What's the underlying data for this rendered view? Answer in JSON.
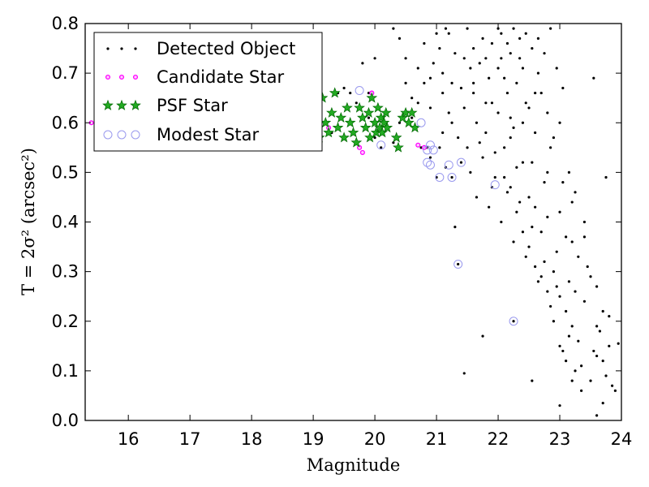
{
  "chart_data": {
    "type": "scatter",
    "xlabel": "Magnitude",
    "ylabel": "T = 2σ² (arcsec²)",
    "xlim": [
      15.3,
      24
    ],
    "ylim": [
      0.0,
      0.8
    ],
    "xticks": [
      16,
      17,
      18,
      19,
      20,
      21,
      22,
      23,
      24
    ],
    "yticks": [
      0.0,
      0.1,
      0.2,
      0.3,
      0.4,
      0.5,
      0.6,
      0.7,
      0.8
    ],
    "grid": false,
    "legend_position": "top-left",
    "colors": {
      "detected": "#000000",
      "candidate": "#ff00ff",
      "psf_fill": "#22aa22",
      "psf_edge": "#006600",
      "modest": "#9999ee"
    },
    "series": [
      {
        "name": "Detected Object",
        "marker": "dot",
        "points": [
          [
            15.4,
            0.6
          ],
          [
            18.8,
            0.59
          ],
          [
            19.0,
            0.6
          ],
          [
            19.3,
            0.58
          ],
          [
            19.4,
            0.66
          ],
          [
            19.6,
            0.66
          ],
          [
            19.8,
            0.54
          ],
          [
            19.9,
            0.61
          ],
          [
            20.0,
            0.57
          ],
          [
            20.1,
            0.55
          ],
          [
            20.3,
            0.56
          ],
          [
            20.4,
            0.6
          ],
          [
            20.6,
            0.61
          ],
          [
            20.75,
            0.55
          ],
          [
            20.85,
            0.55
          ],
          [
            20.9,
            0.53
          ],
          [
            21.0,
            0.49
          ],
          [
            21.05,
            0.55
          ],
          [
            21.15,
            0.51
          ],
          [
            21.25,
            0.49
          ],
          [
            21.3,
            0.39
          ],
          [
            21.35,
            0.315
          ],
          [
            21.4,
            0.52
          ],
          [
            21.45,
            0.095
          ],
          [
            21.75,
            0.17
          ],
          [
            21.9,
            0.47
          ],
          [
            22.25,
            0.2
          ],
          [
            22.55,
            0.08
          ],
          [
            23.0,
            0.03
          ],
          [
            23.6,
            0.01
          ],
          [
            23.7,
            0.035
          ],
          [
            23.95,
            0.155
          ],
          [
            23.75,
            0.49
          ],
          [
            23.55,
            0.69
          ],
          [
            19.8,
            0.72
          ],
          [
            19.5,
            0.67
          ],
          [
            20.0,
            0.73
          ],
          [
            20.6,
            0.65
          ],
          [
            20.5,
            0.73
          ],
          [
            20.4,
            0.77
          ],
          [
            20.8,
            0.76
          ],
          [
            20.3,
            0.79
          ],
          [
            20.9,
            0.69
          ],
          [
            21.0,
            0.78
          ],
          [
            21.1,
            0.7
          ],
          [
            21.2,
            0.62
          ],
          [
            21.3,
            0.74
          ],
          [
            21.5,
            0.79
          ],
          [
            21.6,
            0.66
          ],
          [
            21.7,
            0.72
          ],
          [
            21.8,
            0.58
          ],
          [
            21.9,
            0.64
          ],
          [
            22.0,
            0.79
          ],
          [
            22.1,
            0.55
          ],
          [
            22.2,
            0.61
          ],
          [
            22.3,
            0.68
          ],
          [
            22.4,
            0.52
          ],
          [
            22.5,
            0.45
          ],
          [
            22.6,
            0.58
          ],
          [
            22.7,
            0.38
          ],
          [
            22.8,
            0.62
          ],
          [
            22.9,
            0.3
          ],
          [
            23.0,
            0.42
          ],
          [
            23.1,
            0.22
          ],
          [
            23.2,
            0.36
          ],
          [
            23.3,
            0.16
          ],
          [
            23.4,
            0.4
          ],
          [
            23.5,
            0.08
          ],
          [
            23.6,
            0.19
          ],
          [
            23.7,
            0.12
          ],
          [
            23.8,
            0.21
          ],
          [
            23.9,
            0.06
          ],
          [
            21.05,
            0.75
          ],
          [
            21.15,
            0.79
          ],
          [
            21.25,
            0.68
          ],
          [
            21.35,
            0.57
          ],
          [
            21.45,
            0.63
          ],
          [
            21.55,
            0.71
          ],
          [
            21.65,
            0.6
          ],
          [
            21.75,
            0.77
          ],
          [
            21.85,
            0.69
          ],
          [
            21.95,
            0.54
          ],
          [
            22.05,
            0.73
          ],
          [
            22.15,
            0.66
          ],
          [
            22.25,
            0.59
          ],
          [
            22.35,
            0.77
          ],
          [
            22.45,
            0.64
          ],
          [
            22.55,
            0.52
          ],
          [
            22.65,
            0.7
          ],
          [
            22.75,
            0.48
          ],
          [
            22.85,
            0.55
          ],
          [
            22.95,
            0.34
          ],
          [
            23.05,
            0.48
          ],
          [
            23.15,
            0.28
          ],
          [
            23.25,
            0.26
          ],
          [
            23.35,
            0.11
          ],
          [
            23.45,
            0.31
          ],
          [
            23.55,
            0.14
          ],
          [
            23.65,
            0.18
          ],
          [
            23.75,
            0.09
          ],
          [
            23.85,
            0.07
          ],
          [
            20.7,
            0.71
          ],
          [
            20.8,
            0.68
          ],
          [
            20.9,
            0.63
          ],
          [
            21.1,
            0.66
          ],
          [
            21.2,
            0.78
          ],
          [
            21.4,
            0.67
          ],
          [
            21.5,
            0.55
          ],
          [
            21.6,
            0.75
          ],
          [
            21.7,
            0.56
          ],
          [
            21.8,
            0.73
          ],
          [
            21.9,
            0.76
          ],
          [
            22.0,
            0.62
          ],
          [
            22.1,
            0.69
          ],
          [
            22.2,
            0.74
          ],
          [
            22.3,
            0.51
          ],
          [
            22.4,
            0.71
          ],
          [
            22.5,
            0.63
          ],
          [
            22.6,
            0.43
          ],
          [
            22.7,
            0.66
          ],
          [
            22.8,
            0.41
          ],
          [
            22.9,
            0.57
          ],
          [
            23.0,
            0.25
          ],
          [
            23.1,
            0.37
          ],
          [
            23.2,
            0.19
          ],
          [
            23.3,
            0.33
          ],
          [
            23.4,
            0.24
          ],
          [
            23.5,
            0.29
          ],
          [
            23.6,
            0.13
          ],
          [
            23.7,
            0.22
          ],
          [
            21.55,
            0.5
          ],
          [
            21.65,
            0.45
          ],
          [
            21.75,
            0.53
          ],
          [
            21.85,
            0.43
          ],
          [
            21.95,
            0.49
          ],
          [
            22.05,
            0.4
          ],
          [
            22.15,
            0.46
          ],
          [
            22.25,
            0.36
          ],
          [
            22.35,
            0.44
          ],
          [
            22.45,
            0.33
          ],
          [
            22.55,
            0.39
          ],
          [
            22.65,
            0.28
          ],
          [
            22.75,
            0.32
          ],
          [
            22.85,
            0.23
          ],
          [
            22.95,
            0.27
          ],
          [
            23.05,
            0.14
          ],
          [
            23.15,
            0.17
          ],
          [
            23.25,
            0.1
          ],
          [
            23.35,
            0.06
          ],
          [
            19.7,
            0.64
          ],
          [
            19.9,
            0.66
          ],
          [
            20.2,
            0.62
          ],
          [
            20.5,
            0.68
          ],
          [
            20.7,
            0.64
          ],
          [
            20.95,
            0.72
          ],
          [
            21.1,
            0.58
          ],
          [
            21.25,
            0.6
          ],
          [
            21.45,
            0.73
          ],
          [
            21.6,
            0.68
          ],
          [
            21.8,
            0.64
          ],
          [
            22.0,
            0.71
          ],
          [
            22.2,
            0.57
          ],
          [
            22.4,
            0.6
          ],
          [
            22.6,
            0.66
          ],
          [
            22.8,
            0.5
          ],
          [
            23.0,
            0.6
          ],
          [
            23.2,
            0.44
          ],
          [
            23.4,
            0.37
          ],
          [
            23.6,
            0.27
          ],
          [
            23.8,
            0.15
          ],
          [
            22.05,
            0.78
          ],
          [
            22.15,
            0.76
          ],
          [
            22.25,
            0.79
          ],
          [
            22.35,
            0.73
          ],
          [
            22.45,
            0.78
          ],
          [
            22.55,
            0.75
          ],
          [
            22.65,
            0.77
          ],
          [
            22.75,
            0.74
          ],
          [
            22.85,
            0.79
          ],
          [
            22.95,
            0.71
          ],
          [
            23.05,
            0.67
          ],
          [
            23.15,
            0.5
          ],
          [
            23.25,
            0.46
          ],
          [
            22.1,
            0.49
          ],
          [
            22.2,
            0.47
          ],
          [
            22.3,
            0.42
          ],
          [
            22.4,
            0.38
          ],
          [
            22.5,
            0.35
          ],
          [
            22.6,
            0.31
          ],
          [
            22.7,
            0.29
          ],
          [
            22.8,
            0.26
          ],
          [
            22.9,
            0.2
          ],
          [
            23.0,
            0.15
          ],
          [
            23.1,
            0.12
          ],
          [
            23.2,
            0.08
          ]
        ]
      },
      {
        "name": "Candidate Star",
        "marker": "small-circle",
        "points": [
          [
            15.4,
            0.6
          ],
          [
            19.25,
            0.59
          ],
          [
            19.75,
            0.55
          ],
          [
            19.8,
            0.54
          ],
          [
            19.95,
            0.66
          ],
          [
            20.7,
            0.555
          ],
          [
            20.8,
            0.55
          ]
        ]
      },
      {
        "name": "PSF Star",
        "marker": "star",
        "points": [
          [
            18.75,
            0.61
          ],
          [
            18.85,
            0.58
          ],
          [
            18.95,
            0.6
          ],
          [
            19.05,
            0.63
          ],
          [
            19.1,
            0.57
          ],
          [
            19.15,
            0.65
          ],
          [
            19.2,
            0.6
          ],
          [
            19.25,
            0.58
          ],
          [
            19.3,
            0.62
          ],
          [
            19.35,
            0.66
          ],
          [
            19.4,
            0.59
          ],
          [
            19.45,
            0.61
          ],
          [
            19.5,
            0.57
          ],
          [
            19.55,
            0.63
          ],
          [
            19.6,
            0.6
          ],
          [
            19.65,
            0.58
          ],
          [
            19.7,
            0.56
          ],
          [
            19.75,
            0.63
          ],
          [
            19.8,
            0.61
          ],
          [
            19.85,
            0.59
          ],
          [
            19.9,
            0.62
          ],
          [
            19.92,
            0.57
          ],
          [
            19.95,
            0.65
          ],
          [
            20.0,
            0.6
          ],
          [
            20.02,
            0.58
          ],
          [
            20.05,
            0.63
          ],
          [
            20.08,
            0.59
          ],
          [
            20.1,
            0.61
          ],
          [
            20.12,
            0.58
          ],
          [
            20.15,
            0.6
          ],
          [
            20.18,
            0.62
          ],
          [
            20.2,
            0.59
          ],
          [
            20.35,
            0.57
          ],
          [
            20.38,
            0.55
          ],
          [
            20.45,
            0.61
          ],
          [
            20.5,
            0.62
          ],
          [
            20.55,
            0.6
          ],
          [
            20.6,
            0.62
          ],
          [
            20.65,
            0.59
          ]
        ]
      },
      {
        "name": "Modest Star",
        "marker": "open-circle",
        "points": [
          [
            19.75,
            0.665
          ],
          [
            20.1,
            0.555
          ],
          [
            20.75,
            0.6
          ],
          [
            20.85,
            0.545
          ],
          [
            20.9,
            0.555
          ],
          [
            20.95,
            0.545
          ],
          [
            20.85,
            0.52
          ],
          [
            20.9,
            0.515
          ],
          [
            21.05,
            0.49
          ],
          [
            21.2,
            0.515
          ],
          [
            21.25,
            0.49
          ],
          [
            21.4,
            0.52
          ],
          [
            21.35,
            0.315
          ],
          [
            21.95,
            0.475
          ],
          [
            22.25,
            0.2
          ]
        ]
      }
    ]
  }
}
